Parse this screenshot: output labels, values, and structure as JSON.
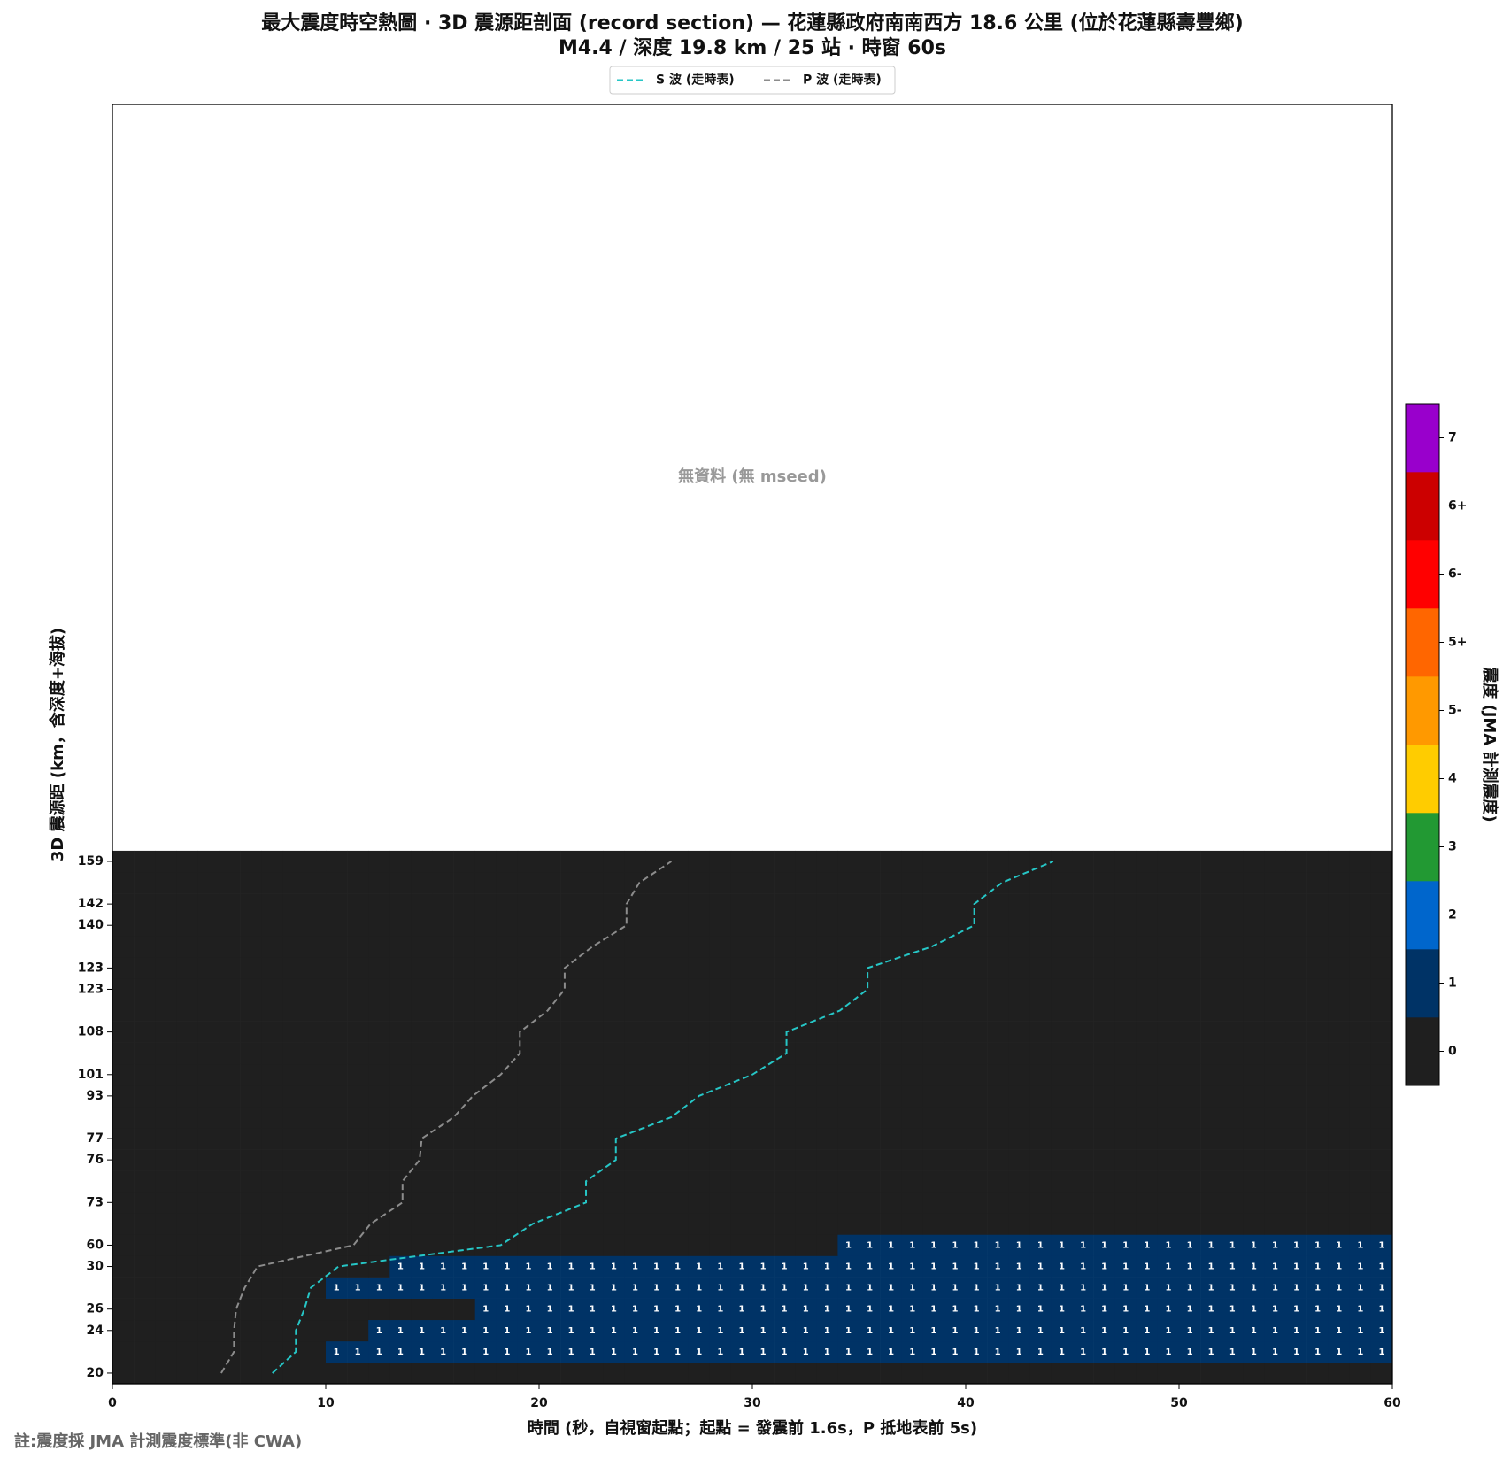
{
  "chart_data": {
    "type": "heatmap",
    "title": "最大震度時空熱圖 · 3D 震源距剖面 (record section) — 花蓮縣政府南南西方  18.6  公里 (位於花蓮縣壽豐鄉)",
    "subtitle": "M4.4 / 深度 19.8 km / 25 站 · 時窗 60s",
    "annotation": "無資料 (無 mseed)",
    "x_label": "時間 (秒，自視窗起點；起點 = 發震前 1.6s，P 抵地表前 5s)",
    "y_label": "3D 震源距 (km，含深度+海拔)",
    "footnote": "註:震度採 JMA 計測震度標準(非 CWA)",
    "xlim": [
      0,
      60
    ],
    "xticks": [
      0,
      10,
      20,
      30,
      40,
      50,
      60
    ],
    "categories": [
      20,
      null,
      24,
      26,
      null,
      30,
      60,
      null,
      73,
      null,
      76,
      77,
      null,
      93,
      101,
      null,
      108,
      null,
      123,
      123,
      null,
      140,
      142,
      null,
      159
    ],
    "z": [
      [
        0,
        0,
        0,
        0,
        0,
        0,
        0,
        0,
        0,
        0,
        0,
        0,
        0,
        0,
        0,
        0,
        0,
        0,
        0,
        0,
        0,
        0,
        0,
        0,
        0,
        0,
        0,
        0,
        0,
        0,
        0,
        0,
        0,
        0,
        0,
        0,
        0,
        0,
        0,
        0,
        0,
        0,
        0,
        0,
        0,
        0,
        0,
        0,
        0,
        0,
        0,
        0,
        0,
        0,
        0,
        0,
        0,
        0,
        0,
        0
      ],
      [
        0,
        0,
        0,
        0,
        0,
        0,
        0,
        0,
        0,
        0,
        1,
        1,
        1,
        1,
        1,
        1,
        1,
        1,
        1,
        1,
        1,
        1,
        1,
        1,
        1,
        1,
        1,
        1,
        1,
        1,
        1,
        1,
        1,
        1,
        1,
        1,
        1,
        1,
        1,
        1,
        1,
        1,
        1,
        1,
        1,
        1,
        1,
        1,
        1,
        1,
        1,
        1,
        1,
        1,
        1,
        1,
        1,
        1,
        1,
        1
      ],
      [
        0,
        0,
        0,
        0,
        0,
        0,
        0,
        0,
        0,
        0,
        0,
        0,
        1,
        1,
        1,
        1,
        1,
        1,
        1,
        1,
        1,
        1,
        1,
        1,
        1,
        1,
        1,
        1,
        1,
        1,
        1,
        1,
        1,
        1,
        1,
        1,
        1,
        1,
        1,
        1,
        1,
        1,
        1,
        1,
        1,
        1,
        1,
        1,
        1,
        1,
        1,
        1,
        1,
        1,
        1,
        1,
        1,
        1,
        1,
        1
      ],
      [
        0,
        0,
        0,
        0,
        0,
        0,
        0,
        0,
        0,
        0,
        0,
        0,
        0,
        0,
        0,
        0,
        0,
        1,
        1,
        1,
        1,
        1,
        1,
        1,
        1,
        1,
        1,
        1,
        1,
        1,
        1,
        1,
        1,
        1,
        1,
        1,
        1,
        1,
        1,
        1,
        1,
        1,
        1,
        1,
        1,
        1,
        1,
        1,
        1,
        1,
        1,
        1,
        1,
        1,
        1,
        1,
        1,
        1,
        1,
        1
      ],
      [
        0,
        0,
        0,
        0,
        0,
        0,
        0,
        0,
        0,
        0,
        1,
        1,
        1,
        1,
        1,
        1,
        1,
        1,
        1,
        1,
        1,
        1,
        1,
        1,
        1,
        1,
        1,
        1,
        1,
        1,
        1,
        1,
        1,
        1,
        1,
        1,
        1,
        1,
        1,
        1,
        1,
        1,
        1,
        1,
        1,
        1,
        1,
        1,
        1,
        1,
        1,
        1,
        1,
        1,
        1,
        1,
        1,
        1,
        1,
        1
      ],
      [
        0,
        0,
        0,
        0,
        0,
        0,
        0,
        0,
        0,
        0,
        0,
        0,
        0,
        1,
        1,
        1,
        1,
        1,
        1,
        1,
        1,
        1,
        1,
        1,
        1,
        1,
        1,
        1,
        1,
        1,
        1,
        1,
        1,
        1,
        1,
        1,
        1,
        1,
        1,
        1,
        1,
        1,
        1,
        1,
        1,
        1,
        1,
        1,
        1,
        1,
        1,
        1,
        1,
        1,
        1,
        1,
        1,
        1,
        1,
        1
      ],
      [
        0,
        0,
        0,
        0,
        0,
        0,
        0,
        0,
        0,
        0,
        0,
        0,
        0,
        0,
        0,
        0,
        0,
        0,
        0,
        0,
        0,
        0,
        0,
        0,
        0,
        0,
        0,
        0,
        0,
        0,
        0,
        0,
        0,
        0,
        1,
        1,
        1,
        1,
        1,
        1,
        1,
        1,
        1,
        1,
        1,
        1,
        1,
        1,
        1,
        1,
        1,
        1,
        1,
        1,
        1,
        1,
        1,
        1,
        1,
        1
      ],
      [
        0,
        0,
        0,
        0,
        0,
        0,
        0,
        0,
        0,
        0,
        0,
        0,
        0,
        0,
        0,
        0,
        0,
        0,
        0,
        0,
        0,
        0,
        0,
        0,
        0,
        0,
        0,
        0,
        0,
        0,
        0,
        0,
        0,
        0,
        0,
        0,
        0,
        0,
        0,
        0,
        0,
        0,
        0,
        0,
        0,
        0,
        0,
        0,
        0,
        0,
        0,
        0,
        0,
        0,
        0,
        0,
        0,
        0,
        0,
        0
      ],
      [
        0,
        0,
        0,
        0,
        0,
        0,
        0,
        0,
        0,
        0,
        0,
        0,
        0,
        0,
        0,
        0,
        0,
        0,
        0,
        0,
        0,
        0,
        0,
        0,
        0,
        0,
        0,
        0,
        0,
        0,
        0,
        0,
        0,
        0,
        0,
        0,
        0,
        0,
        0,
        0,
        0,
        0,
        0,
        0,
        0,
        0,
        0,
        0,
        0,
        0,
        0,
        0,
        0,
        0,
        0,
        0,
        0,
        0,
        0,
        0
      ],
      [
        0,
        0,
        0,
        0,
        0,
        0,
        0,
        0,
        0,
        0,
        0,
        0,
        0,
        0,
        0,
        0,
        0,
        0,
        0,
        0,
        0,
        0,
        0,
        0,
        0,
        0,
        0,
        0,
        0,
        0,
        0,
        0,
        0,
        0,
        0,
        0,
        0,
        0,
        0,
        0,
        0,
        0,
        0,
        0,
        0,
        0,
        0,
        0,
        0,
        0,
        0,
        0,
        0,
        0,
        0,
        0,
        0,
        0,
        0,
        0
      ],
      [
        0,
        0,
        0,
        0,
        0,
        0,
        0,
        0,
        0,
        0,
        0,
        0,
        0,
        0,
        0,
        0,
        0,
        0,
        0,
        0,
        0,
        0,
        0,
        0,
        0,
        0,
        0,
        0,
        0,
        0,
        0,
        0,
        0,
        0,
        0,
        0,
        0,
        0,
        0,
        0,
        0,
        0,
        0,
        0,
        0,
        0,
        0,
        0,
        0,
        0,
        0,
        0,
        0,
        0,
        0,
        0,
        0,
        0,
        0,
        0
      ],
      [
        0,
        0,
        0,
        0,
        0,
        0,
        0,
        0,
        0,
        0,
        0,
        0,
        0,
        0,
        0,
        0,
        0,
        0,
        0,
        0,
        0,
        0,
        0,
        0,
        0,
        0,
        0,
        0,
        0,
        0,
        0,
        0,
        0,
        0,
        0,
        0,
        0,
        0,
        0,
        0,
        0,
        0,
        0,
        0,
        0,
        0,
        0,
        0,
        0,
        0,
        0,
        0,
        0,
        0,
        0,
        0,
        0,
        0,
        0,
        0
      ],
      [
        0,
        0,
        0,
        0,
        0,
        0,
        0,
        0,
        0,
        0,
        0,
        0,
        0,
        0,
        0,
        0,
        0,
        0,
        0,
        0,
        0,
        0,
        0,
        0,
        0,
        0,
        0,
        0,
        0,
        0,
        0,
        0,
        0,
        0,
        0,
        0,
        0,
        0,
        0,
        0,
        0,
        0,
        0,
        0,
        0,
        0,
        0,
        0,
        0,
        0,
        0,
        0,
        0,
        0,
        0,
        0,
        0,
        0,
        0,
        0
      ],
      [
        0,
        0,
        0,
        0,
        0,
        0,
        0,
        0,
        0,
        0,
        0,
        0,
        0,
        0,
        0,
        0,
        0,
        0,
        0,
        0,
        0,
        0,
        0,
        0,
        0,
        0,
        0,
        0,
        0,
        0,
        0,
        0,
        0,
        0,
        0,
        0,
        0,
        0,
        0,
        0,
        0,
        0,
        0,
        0,
        0,
        0,
        0,
        0,
        0,
        0,
        0,
        0,
        0,
        0,
        0,
        0,
        0,
        0,
        0,
        0
      ],
      [
        0,
        0,
        0,
        0,
        0,
        0,
        0,
        0,
        0,
        0,
        0,
        0,
        0,
        0,
        0,
        0,
        0,
        0,
        0,
        0,
        0,
        0,
        0,
        0,
        0,
        0,
        0,
        0,
        0,
        0,
        0,
        0,
        0,
        0,
        0,
        0,
        0,
        0,
        0,
        0,
        0,
        0,
        0,
        0,
        0,
        0,
        0,
        0,
        0,
        0,
        0,
        0,
        0,
        0,
        0,
        0,
        0,
        0,
        0,
        0
      ],
      [
        0,
        0,
        0,
        0,
        0,
        0,
        0,
        0,
        0,
        0,
        0,
        0,
        0,
        0,
        0,
        0,
        0,
        0,
        0,
        0,
        0,
        0,
        0,
        0,
        0,
        0,
        0,
        0,
        0,
        0,
        0,
        0,
        0,
        0,
        0,
        0,
        0,
        0,
        0,
        0,
        0,
        0,
        0,
        0,
        0,
        0,
        0,
        0,
        0,
        0,
        0,
        0,
        0,
        0,
        0,
        0,
        0,
        0,
        0,
        0
      ],
      [
        0,
        0,
        0,
        0,
        0,
        0,
        0,
        0,
        0,
        0,
        0,
        0,
        0,
        0,
        0,
        0,
        0,
        0,
        0,
        0,
        0,
        0,
        0,
        0,
        0,
        0,
        0,
        0,
        0,
        0,
        0,
        0,
        0,
        0,
        0,
        0,
        0,
        0,
        0,
        0,
        0,
        0,
        0,
        0,
        0,
        0,
        0,
        0,
        0,
        0,
        0,
        0,
        0,
        0,
        0,
        0,
        0,
        0,
        0,
        0
      ],
      [
        0,
        0,
        0,
        0,
        0,
        0,
        0,
        0,
        0,
        0,
        0,
        0,
        0,
        0,
        0,
        0,
        0,
        0,
        0,
        0,
        0,
        0,
        0,
        0,
        0,
        0,
        0,
        0,
        0,
        0,
        0,
        0,
        0,
        0,
        0,
        0,
        0,
        0,
        0,
        0,
        0,
        0,
        0,
        0,
        0,
        0,
        0,
        0,
        0,
        0,
        0,
        0,
        0,
        0,
        0,
        0,
        0,
        0,
        0,
        0
      ],
      [
        0,
        0,
        0,
        0,
        0,
        0,
        0,
        0,
        0,
        0,
        0,
        0,
        0,
        0,
        0,
        0,
        0,
        0,
        0,
        0,
        0,
        0,
        0,
        0,
        0,
        0,
        0,
        0,
        0,
        0,
        0,
        0,
        0,
        0,
        0,
        0,
        0,
        0,
        0,
        0,
        0,
        0,
        0,
        0,
        0,
        0,
        0,
        0,
        0,
        0,
        0,
        0,
        0,
        0,
        0,
        0,
        0,
        0,
        0,
        0
      ],
      [
        0,
        0,
        0,
        0,
        0,
        0,
        0,
        0,
        0,
        0,
        0,
        0,
        0,
        0,
        0,
        0,
        0,
        0,
        0,
        0,
        0,
        0,
        0,
        0,
        0,
        0,
        0,
        0,
        0,
        0,
        0,
        0,
        0,
        0,
        0,
        0,
        0,
        0,
        0,
        0,
        0,
        0,
        0,
        0,
        0,
        0,
        0,
        0,
        0,
        0,
        0,
        0,
        0,
        0,
        0,
        0,
        0,
        0,
        0,
        0
      ],
      [
        0,
        0,
        0,
        0,
        0,
        0,
        0,
        0,
        0,
        0,
        0,
        0,
        0,
        0,
        0,
        0,
        0,
        0,
        0,
        0,
        0,
        0,
        0,
        0,
        0,
        0,
        0,
        0,
        0,
        0,
        0,
        0,
        0,
        0,
        0,
        0,
        0,
        0,
        0,
        0,
        0,
        0,
        0,
        0,
        0,
        0,
        0,
        0,
        0,
        0,
        0,
        0,
        0,
        0,
        0,
        0,
        0,
        0,
        0,
        0
      ],
      [
        0,
        0,
        0,
        0,
        0,
        0,
        0,
        0,
        0,
        0,
        0,
        0,
        0,
        0,
        0,
        0,
        0,
        0,
        0,
        0,
        0,
        0,
        0,
        0,
        0,
        0,
        0,
        0,
        0,
        0,
        0,
        0,
        0,
        0,
        0,
        0,
        0,
        0,
        0,
        0,
        0,
        0,
        0,
        0,
        0,
        0,
        0,
        0,
        0,
        0,
        0,
        0,
        0,
        0,
        0,
        0,
        0,
        0,
        0,
        0
      ],
      [
        0,
        0,
        0,
        0,
        0,
        0,
        0,
        0,
        0,
        0,
        0,
        0,
        0,
        0,
        0,
        0,
        0,
        0,
        0,
        0,
        0,
        0,
        0,
        0,
        0,
        0,
        0,
        0,
        0,
        0,
        0,
        0,
        0,
        0,
        0,
        0,
        0,
        0,
        0,
        0,
        0,
        0,
        0,
        0,
        0,
        0,
        0,
        0,
        0,
        0,
        0,
        0,
        0,
        0,
        0,
        0,
        0,
        0,
        0,
        0
      ],
      [
        0,
        0,
        0,
        0,
        0,
        0,
        0,
        0,
        0,
        0,
        0,
        0,
        0,
        0,
        0,
        0,
        0,
        0,
        0,
        0,
        0,
        0,
        0,
        0,
        0,
        0,
        0,
        0,
        0,
        0,
        0,
        0,
        0,
        0,
        0,
        0,
        0,
        0,
        0,
        0,
        0,
        0,
        0,
        0,
        0,
        0,
        0,
        0,
        0,
        0,
        0,
        0,
        0,
        0,
        0,
        0,
        0,
        0,
        0,
        0
      ],
      [
        0,
        0,
        0,
        0,
        0,
        0,
        0,
        0,
        0,
        0,
        0,
        0,
        0,
        0,
        0,
        0,
        0,
        0,
        0,
        0,
        0,
        0,
        0,
        0,
        0,
        0,
        0,
        0,
        0,
        0,
        0,
        0,
        0,
        0,
        0,
        0,
        0,
        0,
        0,
        0,
        0,
        0,
        0,
        0,
        0,
        0,
        0,
        0,
        0,
        0,
        0,
        0,
        0,
        0,
        0,
        0,
        0,
        0,
        0,
        0
      ]
    ],
    "series": [
      {
        "name": "S 波 (走時表)",
        "color": "#26c6c6",
        "values": [
          7.5,
          8.6,
          8.6,
          9.0,
          9.3,
          10.6,
          18.2,
          19.7,
          22.2,
          22.2,
          23.6,
          23.6,
          26.2,
          27.5,
          30.0,
          31.6,
          31.6,
          34.1,
          35.4,
          35.4,
          38.4,
          40.4,
          40.4,
          41.7,
          44.1
        ]
      },
      {
        "name": "P 波 (走時表)",
        "color": "#8c8c8c",
        "values": [
          5.1,
          5.7,
          5.7,
          5.8,
          6.2,
          6.8,
          11.3,
          12.1,
          13.6,
          13.6,
          14.4,
          14.5,
          16.0,
          16.9,
          18.2,
          19.1,
          19.1,
          20.4,
          21.2,
          21.2,
          22.5,
          24.1,
          24.1,
          24.7,
          26.2
        ]
      }
    ],
    "colorbar": {
      "label": "震度 (JMA 計測震度)",
      "levels": [
        0,
        1,
        2,
        3,
        4,
        "5-",
        "5+",
        "6-",
        "6+",
        7
      ],
      "colors": [
        "#1f1f1f",
        "#003366",
        "#0066cc",
        "#229933",
        "#ffcc00",
        "#ff9900",
        "#ff6600",
        "#ff0000",
        "#cc0000",
        "#9900cc"
      ]
    }
  }
}
